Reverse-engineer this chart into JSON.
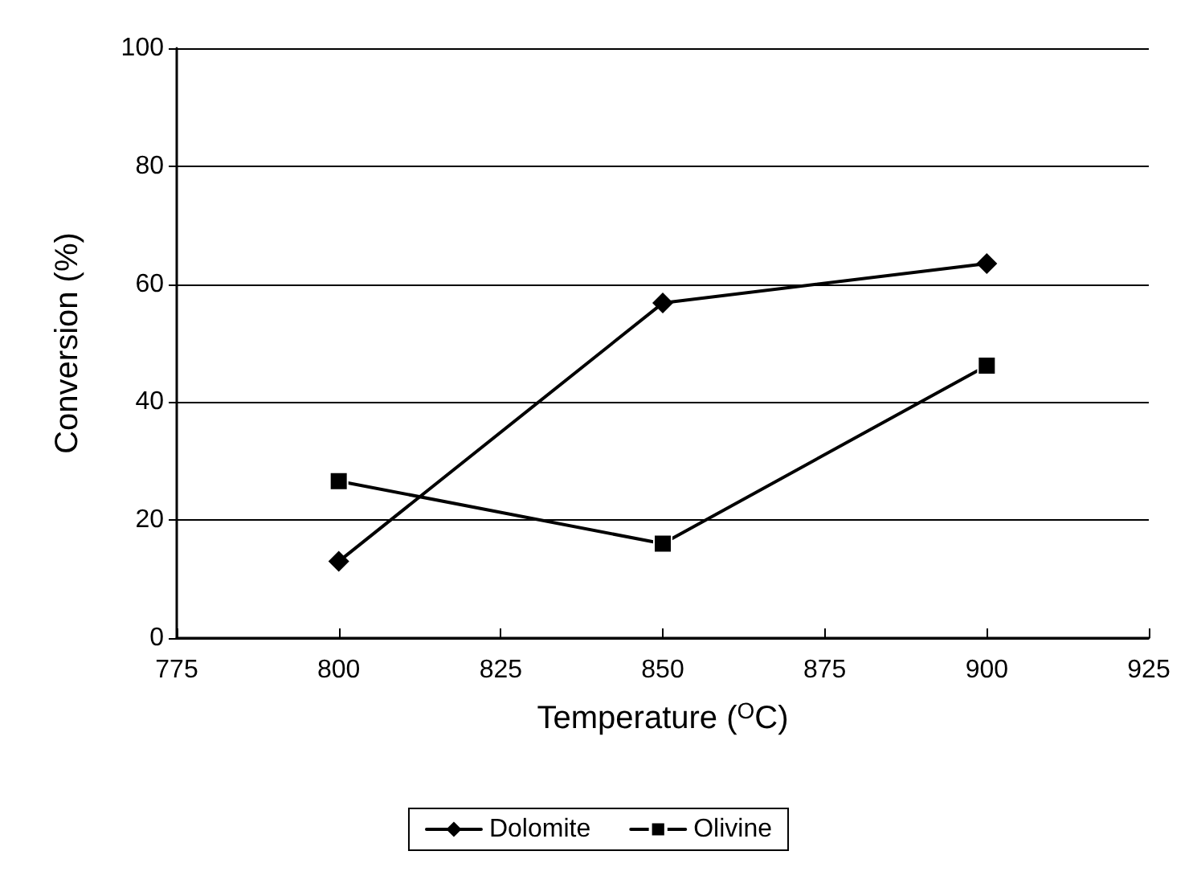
{
  "chart_data": {
    "type": "line",
    "xlabel": "Temperature ($^{O}$C)",
    "ylabel": "Conversion (%)",
    "xlim": [
      775,
      925
    ],
    "xticks": [
      775,
      800,
      825,
      850,
      875,
      900,
      925
    ],
    "ylim": [
      0,
      100
    ],
    "yticks": [
      0,
      20,
      40,
      60,
      80,
      100
    ],
    "grid": "y",
    "legend": "bottom",
    "series": [
      {
        "name": "Dolomite",
        "color": "#000000",
        "marker": "diamond",
        "x": [
          800,
          850,
          900
        ],
        "values": [
          13.0,
          56.8,
          63.5
        ]
      },
      {
        "name": "Olivine",
        "color": "#000000",
        "marker": "square",
        "x": [
          800,
          850,
          900
        ],
        "values": [
          26.6,
          16.0,
          46.2
        ]
      }
    ]
  }
}
